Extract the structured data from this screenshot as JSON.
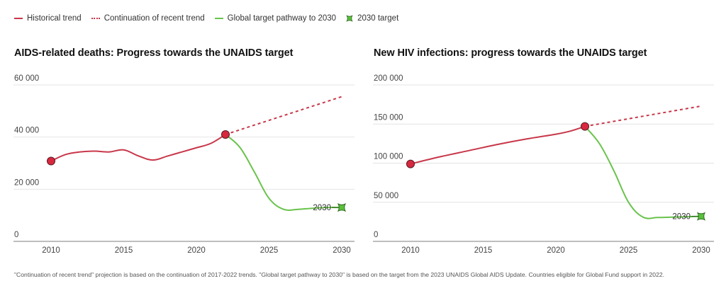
{
  "legend": {
    "items": [
      {
        "label": "Historical trend",
        "style": "solid-red"
      },
      {
        "label": "Continuation of recent trend",
        "style": "dash-red"
      },
      {
        "label": "Global target pathway to 2030",
        "style": "solid-green"
      },
      {
        "label": "2030 target",
        "style": "target-marker"
      }
    ]
  },
  "colors": {
    "historical": "#c8374a",
    "continuation": "#c8374a",
    "pathway": "#69c34b",
    "target_fill": "#5bbf3c",
    "marker_fill": "#d7283f",
    "grid": "#e4e4e4",
    "axis": "#a8a8a8",
    "tick_text": "#444444"
  },
  "footnote": "\"Continuation of recent trend\" projection is based on the continuation of 2017-2022 trends. \"Global target pathway to 2030\" is based on the target from the 2023 UNAIDS Global AIDS Update. Countries eligible for Global Fund support in 2022.",
  "chart_data": [
    {
      "type": "line",
      "title": "AIDS-related deaths: Progress towards the UNAIDS target",
      "xlabel": "",
      "ylabel": "",
      "xlim": [
        2007.4,
        2031.0
      ],
      "ylim": [
        0,
        60000
      ],
      "x_ticks": [
        2010,
        2015,
        2020,
        2025,
        2030
      ],
      "y_ticks": [
        0,
        20000,
        40000,
        60000
      ],
      "y_tick_labels": [
        "0",
        "20 000",
        "40 000",
        "60 000"
      ],
      "grid": true,
      "legend": "top-left",
      "target_label": "2030",
      "series": [
        {
          "name": "Historical trend",
          "style": "solid",
          "x": [
            2010,
            2011,
            2012,
            2013,
            2014,
            2015,
            2016,
            2017,
            2018,
            2019,
            2020,
            2021,
            2022
          ],
          "y": [
            30800,
            33300,
            34300,
            34600,
            34300,
            35100,
            32800,
            31200,
            32700,
            34300,
            35900,
            37600,
            41000
          ]
        },
        {
          "name": "Continuation of recent trend",
          "style": "dashed",
          "x": [
            2022,
            2030
          ],
          "y": [
            41000,
            55500
          ]
        },
        {
          "name": "Global target pathway to 2030",
          "style": "solid",
          "x": [
            2022,
            2023,
            2024,
            2025,
            2026,
            2027,
            2028,
            2029,
            2030
          ],
          "y": [
            41000,
            36000,
            26500,
            16500,
            12300,
            12300,
            12700,
            13000,
            13000
          ]
        },
        {
          "name": "2030 target",
          "style": "marker",
          "x": [
            2030
          ],
          "y": [
            13000
          ]
        }
      ],
      "point_markers": [
        {
          "x": 2010,
          "y": 30800
        },
        {
          "x": 2022,
          "y": 41000
        }
      ]
    },
    {
      "type": "line",
      "title": "New HIV infections: progress towards the UNAIDS target",
      "xlabel": "",
      "ylabel": "",
      "xlim": [
        2007.4,
        2031.0
      ],
      "ylim": [
        0,
        200000
      ],
      "x_ticks": [
        2010,
        2015,
        2020,
        2025,
        2030
      ],
      "y_ticks": [
        0,
        50000,
        100000,
        150000,
        200000
      ],
      "y_tick_labels": [
        "0",
        "50 000",
        "100 000",
        "150 000",
        "200 000"
      ],
      "grid": true,
      "legend": "top-left",
      "target_label": "2030",
      "series": [
        {
          "name": "Historical trend",
          "style": "solid",
          "x": [
            2010,
            2012,
            2014,
            2016,
            2018,
            2020,
            2021,
            2022
          ],
          "y": [
            99000,
            108000,
            116000,
            124000,
            131000,
            137000,
            141000,
            147000
          ]
        },
        {
          "name": "Continuation of recent trend",
          "style": "dashed",
          "x": [
            2022,
            2030
          ],
          "y": [
            147000,
            173000
          ]
        },
        {
          "name": "Global target pathway to 2030",
          "style": "solid",
          "x": [
            2022,
            2023,
            2024,
            2025,
            2026,
            2027,
            2028,
            2029,
            2030
          ],
          "y": [
            147000,
            125000,
            90000,
            50000,
            31000,
            30500,
            31000,
            31500,
            32000
          ]
        },
        {
          "name": "2030 target",
          "style": "marker",
          "x": [
            2030
          ],
          "y": [
            32000
          ]
        }
      ],
      "point_markers": [
        {
          "x": 2010,
          "y": 99000
        },
        {
          "x": 2022,
          "y": 147000
        }
      ]
    }
  ]
}
